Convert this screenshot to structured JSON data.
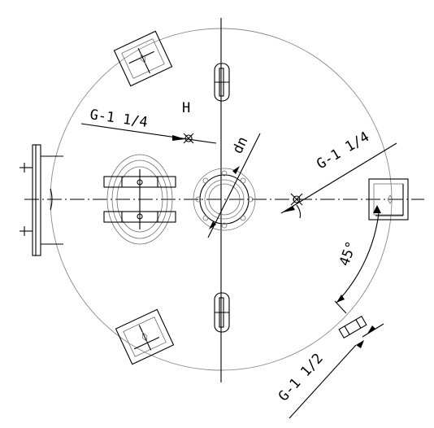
{
  "labels": {
    "top_left_connection": "G-1 1/4",
    "right_connection": "G-1 1/4",
    "bottom_right_connection": "G-1 1/2",
    "nozzle_diameter": "dn",
    "angle": "45°",
    "section_marker": "H"
  }
}
